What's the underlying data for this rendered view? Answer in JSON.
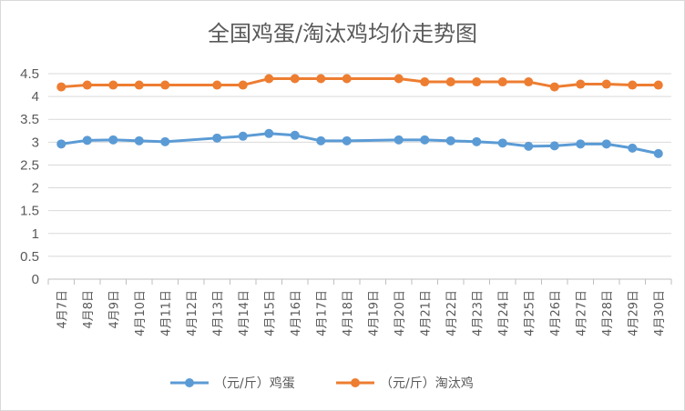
{
  "chart_data": {
    "type": "line",
    "title": "全国鸡蛋/淘汰鸡均价走势图",
    "xlabel": "",
    "ylabel": "",
    "ylim": [
      0,
      4.5
    ],
    "yticks": [
      "0",
      "0.5",
      "1",
      "1.5",
      "2",
      "2.5",
      "3",
      "3.5",
      "4",
      "4.5"
    ],
    "grid": true,
    "legend_position": "bottom",
    "categories": [
      "4月7日",
      "4月8日",
      "4月9日",
      "4月10日",
      "4月11日",
      "4月12日",
      "4月13日",
      "4月14日",
      "4月15日",
      "4月16日",
      "4月17日",
      "4月18日",
      "4月19日",
      "4月20日",
      "4月21日",
      "4月22日",
      "4月23日",
      "4月24日",
      "4月25日",
      "4月26日",
      "4月27日",
      "4月28日",
      "4月29日",
      "4月30日"
    ],
    "series": [
      {
        "name": "（元/斤）鸡蛋",
        "color": "#5b9bd5",
        "values": [
          2.96,
          3.04,
          3.05,
          3.03,
          3.01,
          null,
          3.09,
          3.13,
          3.19,
          3.15,
          3.03,
          3.03,
          null,
          3.05,
          3.05,
          3.03,
          3.01,
          2.98,
          2.91,
          2.92,
          2.96,
          2.96,
          2.87,
          2.75
        ]
      },
      {
        "name": "（元/斤）淘汰鸡",
        "color": "#ed7d31",
        "values": [
          4.21,
          4.25,
          4.25,
          4.25,
          4.25,
          null,
          4.25,
          4.25,
          4.39,
          4.39,
          4.39,
          4.39,
          null,
          4.39,
          4.32,
          4.32,
          4.32,
          4.32,
          4.32,
          4.21,
          4.27,
          4.27,
          4.25,
          4.25
        ]
      }
    ]
  }
}
